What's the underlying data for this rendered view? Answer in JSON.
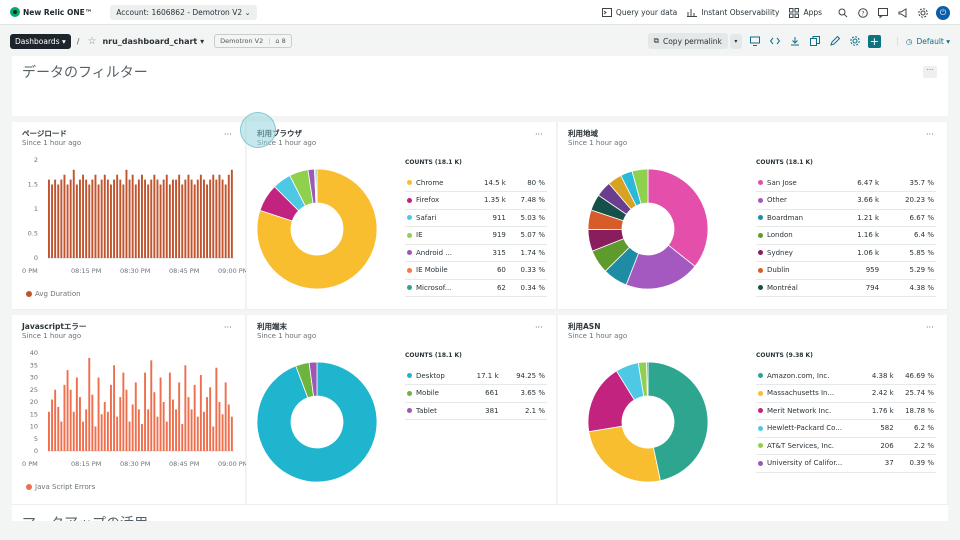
{
  "topbar": {
    "logo": "New Relic ONE™",
    "account": "Account: 1606862 - Demotron V2",
    "query": "Query your data",
    "instant": "Instant Observability",
    "apps": "Apps"
  },
  "subbar": {
    "dashboards": "Dashboards",
    "name": "nru_dashboard_chart",
    "account_tag": "Demotron V2",
    "count": "8",
    "permalink": "Copy permalink",
    "default": "Default"
  },
  "filter": {
    "title": "データのフィルター"
  },
  "bottom": {
    "title": "マークアップの活用"
  },
  "colors": {
    "accent": "#0c7481",
    "bar_page": "#c0542f",
    "bar_js": "#ee6f4d"
  },
  "panels": {
    "pageload": {
      "title": "ページロード",
      "subtitle": "Since 1 hour ago",
      "legend": "Avg Duration",
      "chart_data": {
        "type": "bar",
        "series": [
          {
            "name": "Avg Duration",
            "values": [
              1.6,
              1.5,
              1.6,
              1.5,
              1.6,
              1.7,
              1.5,
              1.6,
              1.8,
              1.5,
              1.6,
              1.7,
              1.6,
              1.5,
              1.6,
              1.7,
              1.5,
              1.6,
              1.7,
              1.6,
              1.5,
              1.6,
              1.7,
              1.6,
              1.5,
              1.8,
              1.6,
              1.7,
              1.5,
              1.6,
              1.7,
              1.6,
              1.5,
              1.6,
              1.7,
              1.6,
              1.5,
              1.6,
              1.7,
              1.5,
              1.6,
              1.6,
              1.7,
              1.5,
              1.6,
              1.7,
              1.6,
              1.5,
              1.6,
              1.7,
              1.6,
              1.5,
              1.6,
              1.7,
              1.6,
              1.7,
              1.6,
              1.5,
              1.7,
              1.8
            ]
          }
        ],
        "yticks": [
          "2",
          "1.5",
          "1",
          "0.5",
          "0"
        ],
        "xticks": [
          "0 PM",
          "08:15 PM",
          "08:30 PM",
          "08:45 PM",
          "09:00 PM"
        ],
        "ylim": [
          0,
          2
        ]
      }
    },
    "jserrors": {
      "title": "Javascriptエラー",
      "subtitle": "Since 1 hour ago",
      "legend": "Java Script Errors",
      "chart_data": {
        "type": "bar",
        "series": [
          {
            "name": "Java Script Errors",
            "values": [
              16,
              21,
              25,
              18,
              12,
              27,
              33,
              25,
              16,
              30,
              22,
              12,
              17,
              38,
              23,
              10,
              30,
              15,
              20,
              16,
              27,
              35,
              14,
              22,
              32,
              25,
              12,
              19,
              28,
              17,
              11,
              32,
              17,
              37,
              24,
              14,
              30,
              20,
              12,
              32,
              21,
              17,
              28,
              11,
              35,
              22,
              17,
              27,
              14,
              31,
              16,
              22,
              26,
              10,
              34,
              20,
              15,
              28,
              19,
              14
            ]
          }
        ],
        "yticks": [
          "40",
          "35",
          "30",
          "25",
          "20",
          "15",
          "10",
          "5",
          "0"
        ],
        "xticks": [
          "0 PM",
          "08:15 PM",
          "08:30 PM",
          "08:45 PM",
          "09:00 PM"
        ],
        "ylim": [
          0,
          40
        ]
      }
    },
    "browser": {
      "title": "利用ブラウザ",
      "subtitle": "Since 1 hour ago",
      "counts": "COUNTS (18.1 K)",
      "chart_data": {
        "type": "pie",
        "rows": [
          {
            "label": "Chrome",
            "count": "14.5 k",
            "pct": "80 %",
            "value": 80,
            "color": "#f9bd30"
          },
          {
            "label": "Firefox",
            "count": "1.35 k",
            "pct": "7.48 %",
            "value": 7.48,
            "color": "#c2237e"
          },
          {
            "label": "Safari",
            "count": "911",
            "pct": "5.03 %",
            "value": 5.03,
            "color": "#4dc9e6"
          },
          {
            "label": "IE",
            "count": "919",
            "pct": "5.07 %",
            "value": 5.07,
            "color": "#8fd14f"
          },
          {
            "label": "Android ...",
            "count": "315",
            "pct": "1.74 %",
            "value": 1.74,
            "color": "#9b59b6"
          },
          {
            "label": "IE Mobile",
            "count": "60",
            "pct": "0.33 %",
            "value": 0.33,
            "color": "#ee7b4a"
          },
          {
            "label": "Microsof...",
            "count": "62",
            "pct": "0.34 %",
            "value": 0.34,
            "color": "#2ea58f"
          }
        ]
      }
    },
    "region": {
      "title": "利用地域",
      "subtitle": "Since 1 hour ago",
      "counts": "COUNTS (18.1 K)",
      "chart_data": {
        "type": "pie",
        "rows": [
          {
            "label": "San Jose",
            "count": "6.47 k",
            "pct": "35.7 %",
            "value": 35.7,
            "color": "#e54fac"
          },
          {
            "label": "Other",
            "count": "3.66 k",
            "pct": "20.23 %",
            "value": 20.23,
            "color": "#a359c0"
          },
          {
            "label": "Boardman",
            "count": "1.21 k",
            "pct": "6.67 %",
            "value": 6.67,
            "color": "#1f8ca6"
          },
          {
            "label": "London",
            "count": "1.16 k",
            "pct": "6.4 %",
            "value": 6.4,
            "color": "#5f9a2c"
          },
          {
            "label": "Sydney",
            "count": "1.06 k",
            "pct": "5.85 %",
            "value": 5.85,
            "color": "#8a1d5e"
          },
          {
            "label": "Dublin",
            "count": "959",
            "pct": "5.29 %",
            "value": 5.29,
            "color": "#d85c2a"
          },
          {
            "label": "Montréal",
            "count": "794",
            "pct": "4.38 %",
            "value": 4.38,
            "color": "#16504a"
          }
        ],
        "extra": [
          {
            "value": 4.2,
            "color": "#6a3d8e"
          },
          {
            "value": 3.8,
            "color": "#d8a323"
          },
          {
            "value": 3.2,
            "color": "#2cb8d8"
          },
          {
            "value": 4.28,
            "color": "#8fd14f"
          }
        ]
      }
    },
    "device": {
      "title": "利用端末",
      "subtitle": "Since 1 hour ago",
      "counts": "COUNTS (18.1 K)",
      "chart_data": {
        "type": "pie",
        "rows": [
          {
            "label": "Desktop",
            "count": "17.1 k",
            "pct": "94.25 %",
            "value": 94.25,
            "color": "#1fb5cf"
          },
          {
            "label": "Mobile",
            "count": "661",
            "pct": "3.65 %",
            "value": 3.65,
            "color": "#6fb33f"
          },
          {
            "label": "Tablet",
            "count": "381",
            "pct": "2.1 %",
            "value": 2.1,
            "color": "#9b59b6"
          }
        ]
      }
    },
    "asn": {
      "title": "利用ASN",
      "subtitle": "Since 1 hour ago",
      "counts": "COUNTS (9.38 K)",
      "chart_data": {
        "type": "pie",
        "rows": [
          {
            "label": "Amazon.com, Inc.",
            "count": "4.38 k",
            "pct": "46.69 %",
            "value": 46.69,
            "color": "#2ea58f"
          },
          {
            "label": "Massachusetts In...",
            "count": "2.42 k",
            "pct": "25.74 %",
            "value": 25.74,
            "color": "#f9bd30"
          },
          {
            "label": "Merit Network Inc.",
            "count": "1.76 k",
            "pct": "18.78 %",
            "value": 18.78,
            "color": "#c2237e"
          },
          {
            "label": "Hewlett-Packard Co...",
            "count": "582",
            "pct": "6.2 %",
            "value": 6.2,
            "color": "#4dc9e6"
          },
          {
            "label": "AT&T Services, Inc.",
            "count": "206",
            "pct": "2.2 %",
            "value": 2.2,
            "color": "#8fd14f"
          },
          {
            "label": "University of Califor...",
            "count": "37",
            "pct": "0.39 %",
            "value": 0.39,
            "color": "#9b59b6"
          }
        ]
      }
    }
  }
}
